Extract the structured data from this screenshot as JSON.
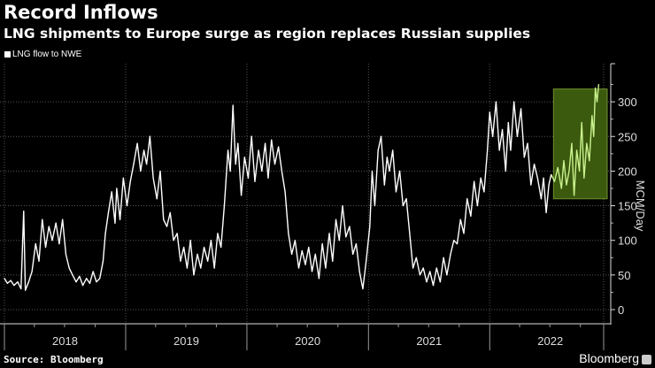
{
  "chart_data": {
    "type": "line",
    "title": "Record Inflows",
    "subtitle": "LNG shipments to Europe surge as region replaces Russian supplies",
    "ylabel": "MCM/Day",
    "ylim": [
      -10,
      330
    ],
    "yticks": [
      0,
      50,
      100,
      150,
      200,
      250,
      300
    ],
    "xlim": [
      "2018-01-01",
      "2022-12-10"
    ],
    "xtick_labels": [
      "2018",
      "2019",
      "2020",
      "2021",
      "2022"
    ],
    "grid": true,
    "legend_placement": "top-left",
    "colors": {
      "line": "#ffffff",
      "highlight_line": "#c9f28e",
      "highlight_box": "#3b5a0e",
      "highlight_border": "#6f8f2e",
      "background": "#000000"
    },
    "highlight": {
      "x": [
        "2022-07-12",
        "2022-12-10"
      ],
      "y": [
        160,
        330
      ]
    },
    "series": [
      {
        "name": "LNG flow to NWE",
        "points": [
          [
            "2018-01-01",
            45
          ],
          [
            "2018-01-10",
            38
          ],
          [
            "2018-01-20",
            42
          ],
          [
            "2018-01-30",
            35
          ],
          [
            "2018-02-10",
            40
          ],
          [
            "2018-02-20",
            30
          ],
          [
            "2018-02-28",
            142
          ],
          [
            "2018-03-05",
            28
          ],
          [
            "2018-03-15",
            40
          ],
          [
            "2018-03-25",
            55
          ],
          [
            "2018-04-05",
            95
          ],
          [
            "2018-04-15",
            70
          ],
          [
            "2018-04-25",
            130
          ],
          [
            "2018-05-05",
            90
          ],
          [
            "2018-05-15",
            120
          ],
          [
            "2018-05-25",
            100
          ],
          [
            "2018-06-05",
            125
          ],
          [
            "2018-06-15",
            95
          ],
          [
            "2018-06-25",
            130
          ],
          [
            "2018-07-05",
            80
          ],
          [
            "2018-07-15",
            60
          ],
          [
            "2018-07-25",
            50
          ],
          [
            "2018-08-05",
            40
          ],
          [
            "2018-08-15",
            48
          ],
          [
            "2018-08-25",
            35
          ],
          [
            "2018-09-05",
            45
          ],
          [
            "2018-09-15",
            38
          ],
          [
            "2018-09-25",
            55
          ],
          [
            "2018-10-05",
            40
          ],
          [
            "2018-10-15",
            45
          ],
          [
            "2018-10-25",
            70
          ],
          [
            "2018-11-01",
            110
          ],
          [
            "2018-11-10",
            140
          ],
          [
            "2018-11-20",
            170
          ],
          [
            "2018-11-30",
            125
          ],
          [
            "2018-12-05",
            175
          ],
          [
            "2018-12-15",
            130
          ],
          [
            "2018-12-25",
            190
          ],
          [
            "2019-01-05",
            150
          ],
          [
            "2019-01-15",
            185
          ],
          [
            "2019-01-25",
            210
          ],
          [
            "2019-02-05",
            240
          ],
          [
            "2019-02-15",
            200
          ],
          [
            "2019-02-25",
            230
          ],
          [
            "2019-03-05",
            210
          ],
          [
            "2019-03-15",
            250
          ],
          [
            "2019-03-25",
            190
          ],
          [
            "2019-04-05",
            160
          ],
          [
            "2019-04-15",
            200
          ],
          [
            "2019-04-25",
            130
          ],
          [
            "2019-05-05",
            120
          ],
          [
            "2019-05-15",
            140
          ],
          [
            "2019-05-25",
            100
          ],
          [
            "2019-06-05",
            110
          ],
          [
            "2019-06-15",
            70
          ],
          [
            "2019-06-25",
            90
          ],
          [
            "2019-07-05",
            60
          ],
          [
            "2019-07-15",
            100
          ],
          [
            "2019-07-25",
            50
          ],
          [
            "2019-08-05",
            80
          ],
          [
            "2019-08-15",
            60
          ],
          [
            "2019-08-25",
            90
          ],
          [
            "2019-09-05",
            70
          ],
          [
            "2019-09-15",
            100
          ],
          [
            "2019-09-25",
            60
          ],
          [
            "2019-10-05",
            110
          ],
          [
            "2019-10-15",
            90
          ],
          [
            "2019-10-25",
            150
          ],
          [
            "2019-11-05",
            230
          ],
          [
            "2019-11-12",
            200
          ],
          [
            "2019-11-20",
            295
          ],
          [
            "2019-11-28",
            210
          ],
          [
            "2019-12-05",
            240
          ],
          [
            "2019-12-15",
            165
          ],
          [
            "2019-12-25",
            220
          ],
          [
            "2020-01-05",
            190
          ],
          [
            "2020-01-15",
            250
          ],
          [
            "2020-01-25",
            185
          ],
          [
            "2020-02-05",
            230
          ],
          [
            "2020-02-15",
            200
          ],
          [
            "2020-02-25",
            240
          ],
          [
            "2020-03-05",
            190
          ],
          [
            "2020-03-15",
            245
          ],
          [
            "2020-03-25",
            210
          ],
          [
            "2020-04-05",
            235
          ],
          [
            "2020-04-15",
            200
          ],
          [
            "2020-04-25",
            170
          ],
          [
            "2020-05-05",
            110
          ],
          [
            "2020-05-15",
            80
          ],
          [
            "2020-05-25",
            100
          ],
          [
            "2020-06-05",
            60
          ],
          [
            "2020-06-15",
            85
          ],
          [
            "2020-06-25",
            65
          ],
          [
            "2020-07-05",
            90
          ],
          [
            "2020-07-15",
            55
          ],
          [
            "2020-07-25",
            80
          ],
          [
            "2020-08-05",
            45
          ],
          [
            "2020-08-15",
            95
          ],
          [
            "2020-08-25",
            60
          ],
          [
            "2020-09-05",
            110
          ],
          [
            "2020-09-15",
            70
          ],
          [
            "2020-09-25",
            130
          ],
          [
            "2020-10-05",
            100
          ],
          [
            "2020-10-15",
            150
          ],
          [
            "2020-10-25",
            105
          ],
          [
            "2020-11-05",
            120
          ],
          [
            "2020-11-15",
            80
          ],
          [
            "2020-11-25",
            95
          ],
          [
            "2020-12-05",
            55
          ],
          [
            "2020-12-15",
            30
          ],
          [
            "2020-12-25",
            70
          ],
          [
            "2021-01-05",
            120
          ],
          [
            "2021-01-12",
            200
          ],
          [
            "2021-01-20",
            150
          ],
          [
            "2021-01-30",
            230
          ],
          [
            "2021-02-08",
            250
          ],
          [
            "2021-02-18",
            180
          ],
          [
            "2021-02-26",
            220
          ],
          [
            "2021-03-05",
            200
          ],
          [
            "2021-03-15",
            230
          ],
          [
            "2021-03-25",
            170
          ],
          [
            "2021-04-05",
            200
          ],
          [
            "2021-04-15",
            150
          ],
          [
            "2021-04-25",
            160
          ],
          [
            "2021-05-05",
            110
          ],
          [
            "2021-05-15",
            60
          ],
          [
            "2021-05-25",
            75
          ],
          [
            "2021-06-05",
            50
          ],
          [
            "2021-06-15",
            60
          ],
          [
            "2021-06-25",
            40
          ],
          [
            "2021-07-05",
            55
          ],
          [
            "2021-07-15",
            35
          ],
          [
            "2021-07-25",
            60
          ],
          [
            "2021-08-05",
            40
          ],
          [
            "2021-08-15",
            75
          ],
          [
            "2021-08-25",
            50
          ],
          [
            "2021-09-05",
            80
          ],
          [
            "2021-09-15",
            100
          ],
          [
            "2021-09-25",
            95
          ],
          [
            "2021-10-05",
            130
          ],
          [
            "2021-10-15",
            110
          ],
          [
            "2021-10-25",
            160
          ],
          [
            "2021-11-05",
            135
          ],
          [
            "2021-11-15",
            185
          ],
          [
            "2021-11-25",
            150
          ],
          [
            "2021-12-05",
            190
          ],
          [
            "2021-12-15",
            170
          ],
          [
            "2021-12-25",
            230
          ],
          [
            "2022-01-01",
            285
          ],
          [
            "2022-01-10",
            250
          ],
          [
            "2022-01-20",
            300
          ],
          [
            "2022-01-30",
            230
          ],
          [
            "2022-02-08",
            260
          ],
          [
            "2022-02-18",
            200
          ],
          [
            "2022-02-26",
            270
          ],
          [
            "2022-03-05",
            230
          ],
          [
            "2022-03-15",
            300
          ],
          [
            "2022-03-25",
            250
          ],
          [
            "2022-04-05",
            290
          ],
          [
            "2022-04-15",
            220
          ],
          [
            "2022-04-25",
            240
          ],
          [
            "2022-05-05",
            180
          ],
          [
            "2022-05-15",
            210
          ],
          [
            "2022-05-25",
            190
          ],
          [
            "2022-06-05",
            160
          ],
          [
            "2022-06-12",
            190
          ],
          [
            "2022-06-20",
            140
          ],
          [
            "2022-06-28",
            180
          ],
          [
            "2022-07-05",
            195
          ],
          [
            "2022-07-15",
            185
          ],
          [
            "2022-07-25",
            205
          ],
          [
            "2022-08-05",
            175
          ],
          [
            "2022-08-12",
            215
          ],
          [
            "2022-08-20",
            180
          ],
          [
            "2022-08-28",
            200
          ],
          [
            "2022-09-05",
            240
          ],
          [
            "2022-09-12",
            165
          ],
          [
            "2022-09-20",
            230
          ],
          [
            "2022-09-28",
            200
          ],
          [
            "2022-10-05",
            270
          ],
          [
            "2022-10-12",
            190
          ],
          [
            "2022-10-20",
            240
          ],
          [
            "2022-10-28",
            215
          ],
          [
            "2022-11-05",
            280
          ],
          [
            "2022-11-10",
            250
          ],
          [
            "2022-11-15",
            320
          ],
          [
            "2022-11-20",
            300
          ],
          [
            "2022-11-25",
            325
          ]
        ]
      }
    ],
    "source": "Source: Bloomberg",
    "brand": "Bloomberg"
  }
}
